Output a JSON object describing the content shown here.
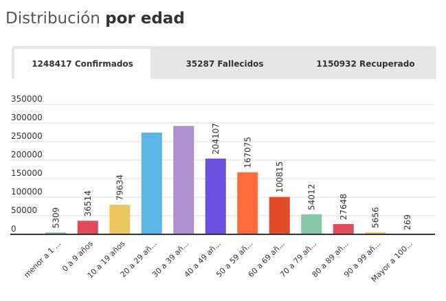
{
  "header": {
    "title_light": "Distribución ",
    "title_bold": "por edad"
  },
  "tabs": [
    {
      "label": "1248417 Confirmados",
      "active": true
    },
    {
      "label": "35287 Fallecidos",
      "active": false
    },
    {
      "label": "1150932 Recuperado",
      "active": false
    }
  ],
  "colors": {
    "axis": "#333333",
    "grid": "#dddddd",
    "tab_bg": "#e6e6e6"
  },
  "chart_data": {
    "type": "bar",
    "title": "",
    "xlabel": "",
    "ylabel": "",
    "ylim": [
      0,
      350000
    ],
    "yticks": [
      0,
      50000,
      100000,
      150000,
      200000,
      250000,
      300000,
      350000
    ],
    "grid": true,
    "categories": [
      "menor a 1 ...",
      "0 a 9 años",
      "10 a 19 años",
      "20 a 29 añ...",
      "30 a 39 añ...",
      "40 a 49 añ...",
      "50 a 59 añ...",
      "60 a 69 añ...",
      "70 a 79 añ...",
      "80 a 89 añ...",
      "90 a 99 añ...",
      "Mayor a 100..."
    ],
    "values": [
      5309,
      36514,
      79634,
      274000,
      292000,
      204107,
      167075,
      100815,
      54012,
      27648,
      5656,
      269
    ],
    "data_labels": [
      "5309",
      "36514",
      "79634",
      "",
      "",
      "204107",
      "167075",
      "100815",
      "54012",
      "27648",
      "5656",
      "269"
    ],
    "bar_colors": [
      "#8bc4a6",
      "#e04b5a",
      "#edc862",
      "#5ab4e5",
      "#ad8fce",
      "#6a4fdc",
      "#ff6b3b",
      "#e14d2a",
      "#86c6a6",
      "#e04b5a",
      "#edc862",
      "#5ab4e5"
    ]
  }
}
